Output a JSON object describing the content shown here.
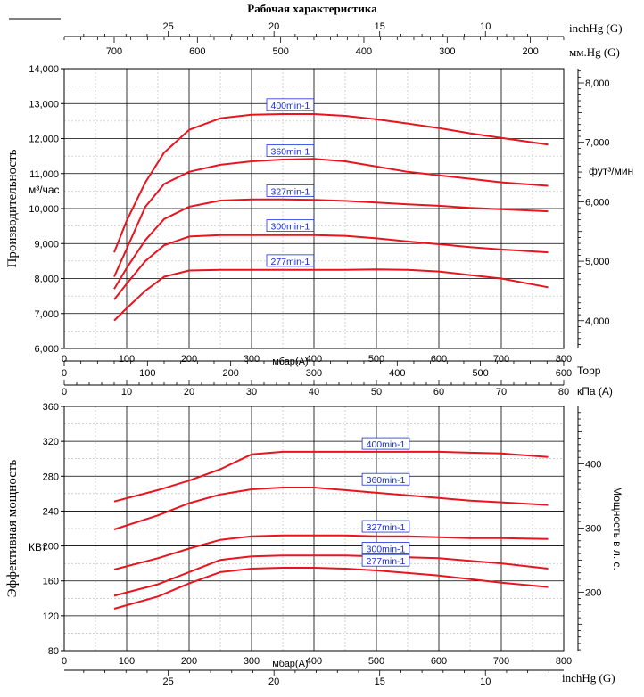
{
  "colors": {
    "curve": "#e8141e",
    "curve_label_text": "#1a2fd6",
    "grid_major": "#000000",
    "grid_minor": "#b4b4b4",
    "background": "#ffffff"
  },
  "chart_data": [
    {
      "type": "line",
      "title": "Рабочая характеристика",
      "ylabel": "Производительность",
      "yunit": "м³/час",
      "ylabel_right": "фут³/мин",
      "xlabel": "мбар(А)",
      "xlim": [
        0,
        800
      ],
      "ylim": [
        6000,
        14000
      ],
      "y_ticks": [
        6000,
        7000,
        8000,
        9000,
        10000,
        11000,
        12000,
        13000,
        14000
      ],
      "y_tick_labels": [
        "6,000",
        "7,000",
        "8,000",
        "9,000",
        "10,000",
        "11,000",
        "12,000",
        "13,000",
        "14,000"
      ],
      "x_ticks": [
        0,
        100,
        200,
        300,
        400,
        500,
        600,
        700,
        800
      ],
      "x_tick_labels": [
        "0",
        "100",
        "200",
        "300",
        "400",
        "500",
        "600",
        "700",
        "800"
      ],
      "y_right_ticks": [
        4000,
        5000,
        6000,
        7000,
        8000
      ],
      "y_right_tick_labels": [
        "4,000",
        "5,000",
        "6,000",
        "7,000",
        "8,000"
      ],
      "top_axes": [
        {
          "label": "inchHg (G)",
          "ticks": [
            25,
            20,
            15,
            10
          ],
          "tick_labels": [
            "25",
            "20",
            "15",
            "10"
          ]
        },
        {
          "label": "мм.Hg (G)",
          "ticks": [
            700,
            600,
            500,
            400,
            300,
            200
          ],
          "tick_labels": [
            "700",
            "600",
            "500",
            "400",
            "300",
            "200"
          ]
        }
      ],
      "grid": true,
      "series": [
        {
          "name": "400min-1",
          "x": [
            80,
            100,
            130,
            160,
            200,
            250,
            300,
            350,
            400,
            450,
            500,
            550,
            600,
            650,
            700,
            775
          ],
          "y": [
            8750,
            9650,
            10750,
            11600,
            12250,
            12580,
            12680,
            12700,
            12700,
            12650,
            12550,
            12430,
            12300,
            12150,
            12020,
            11830
          ]
        },
        {
          "name": "360min-1",
          "x": [
            80,
            100,
            130,
            160,
            200,
            250,
            300,
            350,
            400,
            450,
            500,
            550,
            600,
            650,
            700,
            775
          ],
          "y": [
            8050,
            8850,
            10050,
            10700,
            11050,
            11250,
            11350,
            11400,
            11420,
            11350,
            11200,
            11050,
            10950,
            10850,
            10750,
            10650
          ]
        },
        {
          "name": "327min-1",
          "x": [
            80,
            100,
            130,
            160,
            200,
            250,
            300,
            350,
            400,
            450,
            500,
            550,
            600,
            650,
            700,
            775
          ],
          "y": [
            7700,
            8300,
            9100,
            9700,
            10050,
            10230,
            10260,
            10260,
            10250,
            10220,
            10170,
            10120,
            10080,
            10020,
            9980,
            9920
          ]
        },
        {
          "name": "300min-1",
          "x": [
            80,
            100,
            130,
            160,
            200,
            250,
            300,
            350,
            400,
            450,
            500,
            550,
            600,
            650,
            700,
            775
          ],
          "y": [
            7400,
            7850,
            8500,
            8950,
            9200,
            9240,
            9240,
            9240,
            9240,
            9220,
            9150,
            9060,
            8980,
            8900,
            8830,
            8750
          ]
        },
        {
          "name": "277min-1",
          "x": [
            80,
            100,
            130,
            160,
            200,
            250,
            300,
            350,
            400,
            450,
            500,
            550,
            600,
            650,
            700,
            775
          ],
          "y": [
            6800,
            7150,
            7650,
            8050,
            8230,
            8250,
            8250,
            8250,
            8250,
            8250,
            8260,
            8250,
            8200,
            8100,
            8000,
            7750
          ]
        }
      ],
      "curve_labels": [
        "400min-1",
        "360min-1",
        "327min-1",
        "300min-1",
        "277min-1"
      ]
    },
    {
      "type": "line",
      "ylabel": "Эффективная мощность",
      "yunit": "КВт",
      "ylabel_right": "Мощность в л. с.",
      "xlabel": "мбар(А)",
      "xlim": [
        0,
        800
      ],
      "ylim": [
        80,
        360
      ],
      "y_ticks": [
        80,
        120,
        160,
        200,
        240,
        280,
        320,
        360
      ],
      "y_tick_labels": [
        "80",
        "120",
        "160",
        "200",
        "240",
        "280",
        "320",
        "360"
      ],
      "x_ticks": [
        0,
        100,
        200,
        300,
        400,
        500,
        600,
        700,
        800
      ],
      "x_tick_labels": [
        "0",
        "100",
        "200",
        "300",
        "400",
        "500",
        "600",
        "700",
        "800"
      ],
      "y_right_ticks": [
        200,
        300,
        400
      ],
      "y_right_tick_labels": [
        "200",
        "300",
        "400"
      ],
      "top_axes": [
        {
          "label": "Торр",
          "ticks": [
            0,
            100,
            200,
            300,
            400,
            500,
            600
          ],
          "tick_labels": [
            "0",
            "100",
            "200",
            "300",
            "400",
            "500",
            "600"
          ]
        },
        {
          "label": "кПа (A)",
          "ticks": [
            0,
            10,
            20,
            30,
            40,
            50,
            60,
            70,
            80
          ],
          "tick_labels": [
            "0",
            "10",
            "20",
            "30",
            "40",
            "50",
            "60",
            "70",
            "80"
          ]
        }
      ],
      "bottom_axis": {
        "label": "inchHg (G)",
        "ticks": [
          25,
          20,
          15,
          10
        ],
        "tick_labels": [
          "25",
          "20",
          "15",
          "10"
        ]
      },
      "grid": true,
      "series": [
        {
          "name": "400min-1",
          "x": [
            80,
            150,
            200,
            250,
            300,
            350,
            400,
            450,
            500,
            550,
            600,
            650,
            700,
            775
          ],
          "y": [
            251,
            264,
            275,
            288,
            305,
            308,
            308,
            308,
            308,
            308,
            308,
            307,
            306,
            302
          ]
        },
        {
          "name": "360min-1",
          "x": [
            80,
            150,
            200,
            250,
            300,
            350,
            400,
            450,
            500,
            550,
            600,
            650,
            700,
            775
          ],
          "y": [
            219,
            235,
            249,
            259,
            265,
            267,
            267,
            264,
            261,
            258,
            255,
            252,
            250,
            247
          ]
        },
        {
          "name": "327min-1",
          "x": [
            80,
            150,
            200,
            250,
            300,
            350,
            400,
            450,
            500,
            550,
            600,
            650,
            700,
            775
          ],
          "y": [
            173,
            186,
            197,
            207,
            211,
            212,
            212,
            212,
            211,
            211,
            210,
            209,
            209,
            208
          ]
        },
        {
          "name": "300min-1",
          "x": [
            80,
            150,
            200,
            250,
            300,
            350,
            400,
            450,
            500,
            550,
            600,
            650,
            700,
            775
          ],
          "y": [
            143,
            156,
            170,
            184,
            188,
            189,
            189,
            189,
            188,
            187,
            186,
            183,
            180,
            174
          ]
        },
        {
          "name": "277min-1",
          "x": [
            80,
            150,
            200,
            250,
            300,
            350,
            400,
            450,
            500,
            550,
            600,
            650,
            700,
            775
          ],
          "y": [
            128,
            142,
            157,
            170,
            174,
            175,
            175,
            174,
            172,
            169,
            166,
            162,
            158,
            153
          ]
        }
      ],
      "curve_labels": [
        "400min-1",
        "360min-1",
        "327min-1",
        "300min-1",
        "277min-1"
      ]
    }
  ]
}
